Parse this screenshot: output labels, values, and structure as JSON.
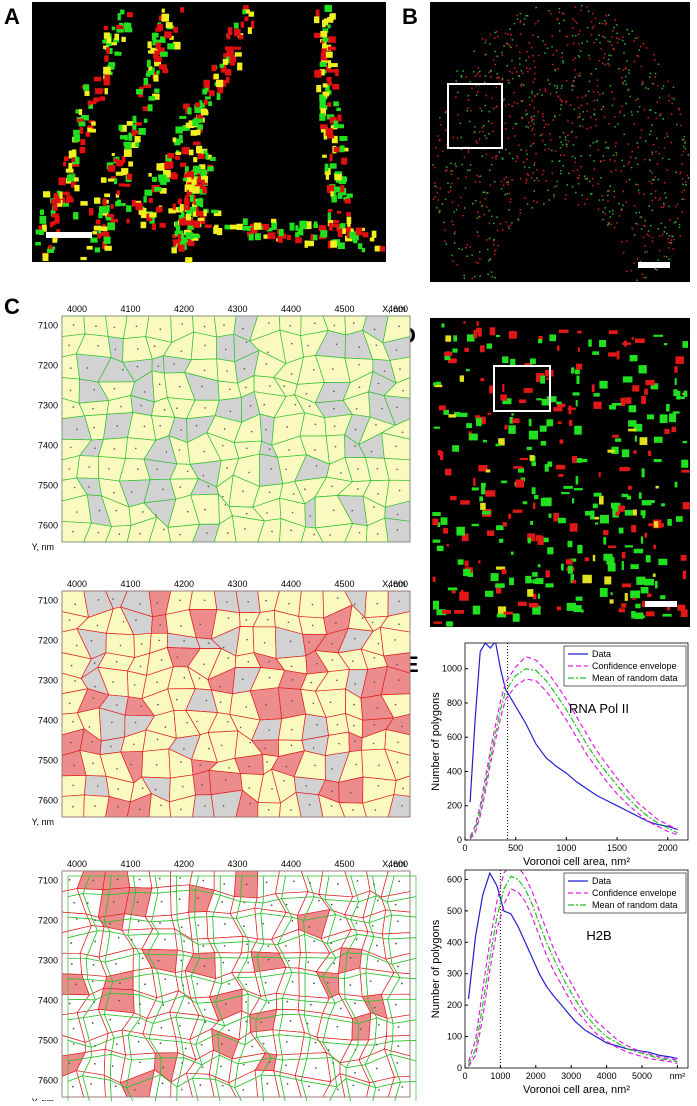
{
  "panel_labels": [
    "A",
    "B",
    "C",
    "D",
    "E"
  ],
  "voronoi_axes": {
    "x_ticks": [
      "4000",
      "4100",
      "4200",
      "4300",
      "4400",
      "4500",
      "4600"
    ],
    "x_unit": "X, nm",
    "y_ticks": [
      "7100",
      "7200",
      "7300",
      "7400",
      "7500",
      "7600"
    ],
    "y_unit": "Y, nm"
  },
  "chart_data": [
    {
      "type": "line",
      "annotation": "RNA Pol II",
      "xlabel": "Voronoi cell area, nm²",
      "ylabel": "Number of polygons",
      "legend": "upper right",
      "threshold_x": 420,
      "xlim": [
        0,
        2200
      ],
      "ylim": [
        0,
        1150
      ],
      "xticks": [
        0,
        500,
        1000,
        1500,
        2000
      ],
      "yticks": [
        0,
        200,
        400,
        600,
        800,
        1000
      ],
      "x": [
        50,
        100,
        150,
        200,
        250,
        300,
        350,
        400,
        500,
        600,
        700,
        800,
        900,
        1000,
        1100,
        1200,
        1300,
        1400,
        1500,
        1600,
        1700,
        1800,
        1900,
        2000,
        2100
      ],
      "series": [
        {
          "name": "Data",
          "color": "#2020d0",
          "style": "solid",
          "values": [
            220,
            700,
            1100,
            1150,
            1120,
            1160,
            1000,
            880,
            780,
            680,
            560,
            480,
            430,
            390,
            340,
            300,
            260,
            230,
            200,
            170,
            140,
            110,
            90,
            80,
            60
          ]
        },
        {
          "name": "Confidence envelope",
          "color": "#e020e0",
          "style": "dashed",
          "values": [
            20,
            80,
            200,
            360,
            520,
            670,
            810,
            920,
            1010,
            1070,
            1050,
            990,
            910,
            820,
            720,
            620,
            520,
            440,
            360,
            290,
            220,
            170,
            120,
            90,
            60
          ],
          "lower": [
            5,
            40,
            140,
            280,
            440,
            580,
            710,
            820,
            900,
            940,
            930,
            870,
            790,
            700,
            600,
            500,
            420,
            340,
            270,
            210,
            160,
            110,
            80,
            50,
            30
          ]
        },
        {
          "name": "Mean of random data",
          "color": "#20c020",
          "style": "dashdot",
          "values": [
            10,
            60,
            170,
            320,
            480,
            620,
            760,
            870,
            960,
            1000,
            990,
            930,
            850,
            760,
            660,
            560,
            470,
            390,
            320,
            250,
            190,
            140,
            100,
            70,
            40
          ]
        }
      ]
    },
    {
      "type": "line",
      "annotation": "H2B",
      "xlabel": "Voronoi cell area, nm²",
      "ylabel": "Number of polygons",
      "legend": "upper right",
      "threshold_x": 1000,
      "xlim": [
        0,
        6300
      ],
      "ylim": [
        0,
        630
      ],
      "xticks": [
        0,
        1000,
        2000,
        3000,
        4000,
        5000,
        {
          "value": 6000,
          "label": "nm²"
        }
      ],
      "yticks": [
        0,
        100,
        200,
        300,
        400,
        500,
        600
      ],
      "x": [
        100,
        300,
        500,
        700,
        900,
        1100,
        1300,
        1500,
        1700,
        1900,
        2100,
        2300,
        2500,
        2800,
        3100,
        3400,
        3700,
        4000,
        4300,
        4600,
        4900,
        5200,
        5500,
        5800,
        6000
      ],
      "series": [
        {
          "name": "Data",
          "color": "#2020d0",
          "style": "solid",
          "values": [
            220,
            420,
            550,
            620,
            580,
            500,
            490,
            450,
            400,
            350,
            300,
            260,
            230,
            190,
            150,
            120,
            100,
            80,
            70,
            60,
            55,
            50,
            40,
            35,
            30
          ]
        },
        {
          "name": "Confidence envelope",
          "color": "#e020e0",
          "style": "dashed",
          "values": [
            20,
            90,
            250,
            400,
            530,
            620,
            650,
            640,
            610,
            560,
            500,
            440,
            380,
            310,
            250,
            190,
            150,
            120,
            90,
            70,
            55,
            45,
            35,
            30,
            25
          ],
          "lower": [
            5,
            40,
            160,
            310,
            440,
            520,
            570,
            560,
            530,
            480,
            420,
            360,
            310,
            250,
            190,
            150,
            110,
            85,
            65,
            50,
            40,
            30,
            25,
            20,
            15
          ]
        },
        {
          "name": "Mean of random data",
          "color": "#20c020",
          "style": "dashdot",
          "values": [
            10,
            60,
            200,
            350,
            480,
            570,
            610,
            600,
            570,
            520,
            460,
            400,
            350,
            280,
            220,
            170,
            130,
            100,
            80,
            60,
            50,
            40,
            30,
            25,
            20
          ]
        }
      ]
    }
  ]
}
